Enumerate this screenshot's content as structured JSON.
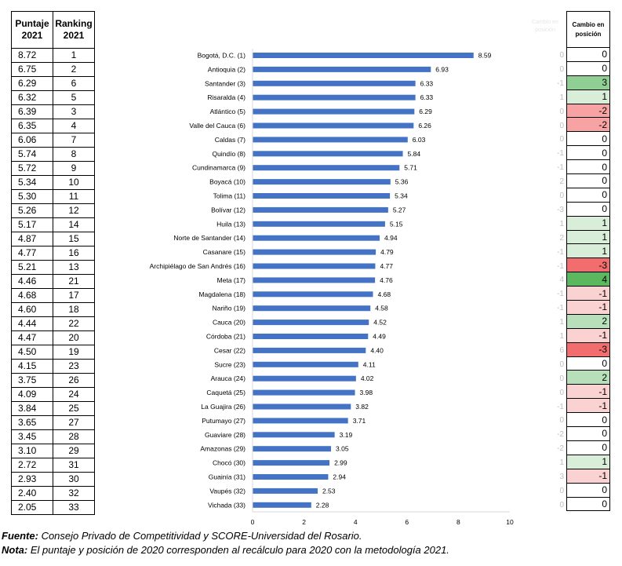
{
  "table_headers": {
    "puntaje": "Puntaje 2021",
    "ranking": "Ranking 2021",
    "cambio_ghost": "Cambio en posición",
    "cambio": "Cambio en posición"
  },
  "rows_2021": [
    {
      "puntaje": "8.72",
      "ranking": "1"
    },
    {
      "puntaje": "6.75",
      "ranking": "2"
    },
    {
      "puntaje": "6.29",
      "ranking": "6"
    },
    {
      "puntaje": "6.32",
      "ranking": "5"
    },
    {
      "puntaje": "6.39",
      "ranking": "3"
    },
    {
      "puntaje": "6.35",
      "ranking": "4"
    },
    {
      "puntaje": "6.06",
      "ranking": "7"
    },
    {
      "puntaje": "5.74",
      "ranking": "8"
    },
    {
      "puntaje": "5.72",
      "ranking": "9"
    },
    {
      "puntaje": "5.34",
      "ranking": "10"
    },
    {
      "puntaje": "5.30",
      "ranking": "11"
    },
    {
      "puntaje": "5.26",
      "ranking": "12"
    },
    {
      "puntaje": "5.17",
      "ranking": "14"
    },
    {
      "puntaje": "4.87",
      "ranking": "15"
    },
    {
      "puntaje": "4.77",
      "ranking": "16"
    },
    {
      "puntaje": "5.21",
      "ranking": "13"
    },
    {
      "puntaje": "4.46",
      "ranking": "21"
    },
    {
      "puntaje": "4.68",
      "ranking": "17"
    },
    {
      "puntaje": "4.60",
      "ranking": "18"
    },
    {
      "puntaje": "4.44",
      "ranking": "22"
    },
    {
      "puntaje": "4.47",
      "ranking": "20"
    },
    {
      "puntaje": "4.50",
      "ranking": "19"
    },
    {
      "puntaje": "4.15",
      "ranking": "23"
    },
    {
      "puntaje": "3.75",
      "ranking": "26"
    },
    {
      "puntaje": "4.09",
      "ranking": "24"
    },
    {
      "puntaje": "3.84",
      "ranking": "25"
    },
    {
      "puntaje": "3.65",
      "ranking": "27"
    },
    {
      "puntaje": "3.45",
      "ranking": "28"
    },
    {
      "puntaje": "3.10",
      "ranking": "29"
    },
    {
      "puntaje": "2.72",
      "ranking": "31"
    },
    {
      "puntaje": "2.93",
      "ranking": "30"
    },
    {
      "puntaje": "2.40",
      "ranking": "32"
    },
    {
      "puntaje": "2.05",
      "ranking": "33"
    }
  ],
  "ghost_changes": [
    "0",
    "0",
    "-1",
    "1",
    "0",
    "0",
    "0",
    "-1",
    "-1",
    "2",
    "0",
    "-3",
    "1",
    "2",
    "-1",
    "-1",
    "4",
    "-1",
    "-1",
    "1",
    "1",
    "6",
    "0",
    "0",
    "0",
    "-1",
    "0",
    "-2",
    "-2",
    "1",
    "3",
    "0",
    "0"
  ],
  "cambio": [
    {
      "value": "0",
      "color": "#ffffff"
    },
    {
      "value": "0",
      "color": "#ffffff"
    },
    {
      "value": "3",
      "color": "#8fcf93"
    },
    {
      "value": "1",
      "color": "#d8eed9"
    },
    {
      "value": "-2",
      "color": "#f7a3a3"
    },
    {
      "value": "-2",
      "color": "#f7a3a3"
    },
    {
      "value": "0",
      "color": "#ffffff"
    },
    {
      "value": "0",
      "color": "#ffffff"
    },
    {
      "value": "0",
      "color": "#ffffff"
    },
    {
      "value": "0",
      "color": "#ffffff"
    },
    {
      "value": "0",
      "color": "#ffffff"
    },
    {
      "value": "0",
      "color": "#ffffff"
    },
    {
      "value": "1",
      "color": "#d8eed9"
    },
    {
      "value": "1",
      "color": "#d8eed9"
    },
    {
      "value": "1",
      "color": "#d8eed9"
    },
    {
      "value": "-3",
      "color": "#f26d6d"
    },
    {
      "value": "4",
      "color": "#5cb85f"
    },
    {
      "value": "-1",
      "color": "#fbd2d2"
    },
    {
      "value": "-1",
      "color": "#fbd2d2"
    },
    {
      "value": "2",
      "color": "#b7dfb9"
    },
    {
      "value": "-1",
      "color": "#fbd2d2"
    },
    {
      "value": "-3",
      "color": "#f26d6d"
    },
    {
      "value": "0",
      "color": "#ffffff"
    },
    {
      "value": "2",
      "color": "#b7dfb9"
    },
    {
      "value": "-1",
      "color": "#fbd2d2"
    },
    {
      "value": "-1",
      "color": "#fbd2d2"
    },
    {
      "value": "0",
      "color": "#ffffff"
    },
    {
      "value": "0",
      "color": "#ffffff"
    },
    {
      "value": "0",
      "color": "#ffffff"
    },
    {
      "value": "1",
      "color": "#d8eed9"
    },
    {
      "value": "-1",
      "color": "#fbd2d2"
    },
    {
      "value": "0",
      "color": "#ffffff"
    },
    {
      "value": "0",
      "color": "#ffffff"
    }
  ],
  "chart_data": {
    "type": "bar",
    "orientation": "horizontal",
    "title": "",
    "xlabel": "",
    "ylabel": "",
    "xlim": [
      0,
      10
    ],
    "x_ticks": [
      "0",
      "2",
      "4",
      "6",
      "8",
      "10"
    ],
    "bar_color": "#4472c4",
    "categories": [
      "Bogotá, D.C. (1)",
      "Antioquia (2)",
      "Santander (3)",
      "Risaralda (4)",
      "Atlántico (5)",
      "Valle del Cauca (6)",
      "Caldas (7)",
      "Quindío (8)",
      "Cundinamarca (9)",
      "Boyacá (10)",
      "Tolima (11)",
      "Bolívar (12)",
      "Huila (13)",
      "Norte de Santander (14)",
      "Casanare (15)",
      "Archipiélago de San Andrés (16)",
      "Meta (17)",
      "Magdalena (18)",
      "Nariño (19)",
      "Cauca (20)",
      "Córdoba (21)",
      "Cesar (22)",
      "Sucre (23)",
      "Arauca (24)",
      "Caquetá (25)",
      "La Guajira (26)",
      "Putumayo (27)",
      "Guaviare (28)",
      "Amazonas (29)",
      "Chocó (30)",
      "Guainía (31)",
      "Vaupés (32)",
      "Vichada (33)"
    ],
    "values": [
      8.59,
      6.93,
      6.33,
      6.33,
      6.29,
      6.26,
      6.03,
      5.84,
      5.71,
      5.36,
      5.34,
      5.27,
      5.15,
      4.94,
      4.79,
      4.77,
      4.76,
      4.68,
      4.58,
      4.52,
      4.49,
      4.4,
      4.11,
      4.02,
      3.98,
      3.82,
      3.71,
      3.19,
      3.05,
      2.99,
      2.94,
      2.53,
      2.28
    ],
    "value_labels": [
      "8.59",
      "6.93",
      "6.33",
      "6.33",
      "6.29",
      "6.26",
      "6.03",
      "5.84",
      "5.71",
      "5.36",
      "5.34",
      "5.27",
      "5.15",
      "4.94",
      "4.79",
      "4.77",
      "4.76",
      "4.68",
      "4.58",
      "4.52",
      "4.49",
      "4.40",
      "4.11",
      "4.02",
      "3.98",
      "3.82",
      "3.71",
      "3.19",
      "3.05",
      "2.99",
      "2.94",
      "2.53",
      "2.28"
    ],
    "grid": false,
    "legend": "none"
  },
  "footer": {
    "fuente_label": "Fuente:",
    "fuente_text": " Consejo Privado de Competitividad y SCORE-Universidad del Rosario.",
    "nota_label": "Nota:",
    "nota_text": " El puntaje y posición de 2020 corresponden al recálculo para 2020 con la metodología 2021."
  }
}
